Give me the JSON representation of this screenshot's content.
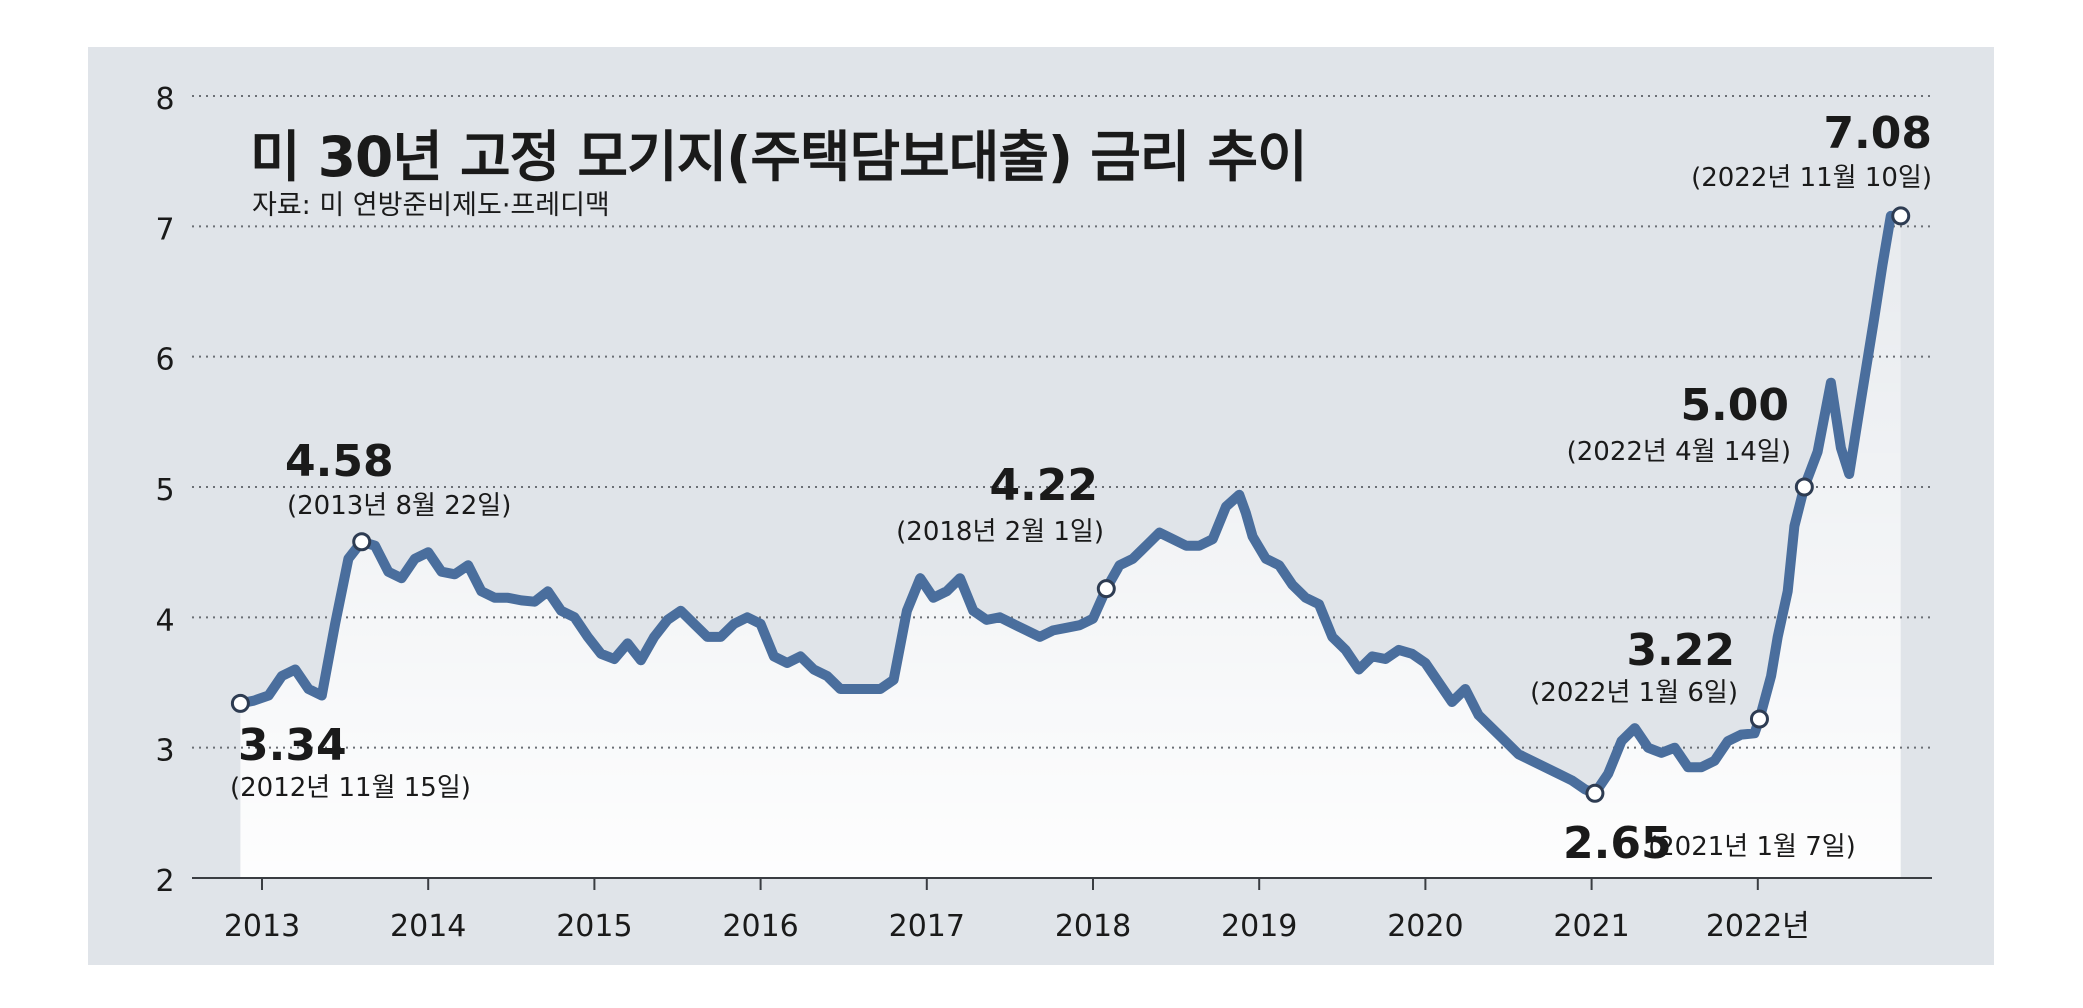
{
  "chart_data": {
    "type": "line",
    "title": "미 30년 고정 모기지(주택담보대출) 금리 추이",
    "subtitle": "자료: 미 연방준비제도·프레디맥",
    "ylim": [
      2,
      8
    ],
    "yticks": [
      "2",
      "3",
      "4",
      "5",
      "6",
      "7",
      "8"
    ],
    "xlim": [
      2012.85,
      2022.93
    ],
    "xticks": [
      {
        "x": 2013,
        "label": "2013"
      },
      {
        "x": 2014,
        "label": "2014"
      },
      {
        "x": 2015,
        "label": "2015"
      },
      {
        "x": 2016,
        "label": "2016"
      },
      {
        "x": 2017,
        "label": "2017"
      },
      {
        "x": 2018,
        "label": "2018"
      },
      {
        "x": 2019,
        "label": "2019"
      },
      {
        "x": 2020,
        "label": "2020"
      },
      {
        "x": 2021,
        "label": "2021"
      },
      {
        "x": 2022,
        "label": "2022년"
      }
    ],
    "grid": "horizontal-dotted",
    "colors": {
      "line": "#4a6e9d",
      "panel": "#e0e4e9",
      "text": "#1a1a1a"
    },
    "series": [
      {
        "points": [
          [
            2012.87,
            3.34
          ],
          [
            2012.95,
            3.36
          ],
          [
            2013.04,
            3.4
          ],
          [
            2013.12,
            3.55
          ],
          [
            2013.2,
            3.6
          ],
          [
            2013.28,
            3.45
          ],
          [
            2013.36,
            3.4
          ],
          [
            2013.44,
            3.95
          ],
          [
            2013.52,
            4.45
          ],
          [
            2013.6,
            4.58
          ],
          [
            2013.68,
            4.55
          ],
          [
            2013.76,
            4.35
          ],
          [
            2013.84,
            4.3
          ],
          [
            2013.92,
            4.45
          ],
          [
            2014.0,
            4.5
          ],
          [
            2014.08,
            4.35
          ],
          [
            2014.16,
            4.33
          ],
          [
            2014.24,
            4.4
          ],
          [
            2014.32,
            4.2
          ],
          [
            2014.4,
            4.15
          ],
          [
            2014.48,
            4.15
          ],
          [
            2014.56,
            4.13
          ],
          [
            2014.64,
            4.12
          ],
          [
            2014.72,
            4.2
          ],
          [
            2014.8,
            4.05
          ],
          [
            2014.88,
            4.0
          ],
          [
            2014.96,
            3.85
          ],
          [
            2015.04,
            3.72
          ],
          [
            2015.12,
            3.68
          ],
          [
            2015.2,
            3.8
          ],
          [
            2015.28,
            3.67
          ],
          [
            2015.36,
            3.85
          ],
          [
            2015.44,
            3.98
          ],
          [
            2015.52,
            4.05
          ],
          [
            2015.6,
            3.95
          ],
          [
            2015.68,
            3.85
          ],
          [
            2015.76,
            3.85
          ],
          [
            2015.84,
            3.95
          ],
          [
            2015.92,
            4.0
          ],
          [
            2016.0,
            3.95
          ],
          [
            2016.08,
            3.7
          ],
          [
            2016.16,
            3.65
          ],
          [
            2016.24,
            3.7
          ],
          [
            2016.32,
            3.6
          ],
          [
            2016.4,
            3.55
          ],
          [
            2016.48,
            3.45
          ],
          [
            2016.56,
            3.45
          ],
          [
            2016.64,
            3.45
          ],
          [
            2016.72,
            3.45
          ],
          [
            2016.8,
            3.52
          ],
          [
            2016.88,
            4.05
          ],
          [
            2016.96,
            4.3
          ],
          [
            2017.04,
            4.15
          ],
          [
            2017.12,
            4.2
          ],
          [
            2017.2,
            4.3
          ],
          [
            2017.28,
            4.05
          ],
          [
            2017.36,
            3.98
          ],
          [
            2017.44,
            4.0
          ],
          [
            2017.52,
            3.95
          ],
          [
            2017.6,
            3.9
          ],
          [
            2017.68,
            3.85
          ],
          [
            2017.76,
            3.9
          ],
          [
            2017.84,
            3.92
          ],
          [
            2017.92,
            3.94
          ],
          [
            2018.0,
            3.99
          ],
          [
            2018.08,
            4.22
          ],
          [
            2018.16,
            4.4
          ],
          [
            2018.24,
            4.45
          ],
          [
            2018.32,
            4.55
          ],
          [
            2018.4,
            4.65
          ],
          [
            2018.48,
            4.6
          ],
          [
            2018.56,
            4.55
          ],
          [
            2018.64,
            4.55
          ],
          [
            2018.72,
            4.6
          ],
          [
            2018.8,
            4.85
          ],
          [
            2018.88,
            4.94
          ],
          [
            2018.92,
            4.8
          ],
          [
            2018.96,
            4.62
          ],
          [
            2019.04,
            4.45
          ],
          [
            2019.12,
            4.4
          ],
          [
            2019.2,
            4.25
          ],
          [
            2019.28,
            4.15
          ],
          [
            2019.36,
            4.1
          ],
          [
            2019.44,
            3.85
          ],
          [
            2019.52,
            3.75
          ],
          [
            2019.6,
            3.6
          ],
          [
            2019.68,
            3.7
          ],
          [
            2019.76,
            3.68
          ],
          [
            2019.84,
            3.75
          ],
          [
            2019.92,
            3.72
          ],
          [
            2020.0,
            3.65
          ],
          [
            2020.08,
            3.5
          ],
          [
            2020.16,
            3.35
          ],
          [
            2020.24,
            3.45
          ],
          [
            2020.32,
            3.25
          ],
          [
            2020.4,
            3.15
          ],
          [
            2020.48,
            3.05
          ],
          [
            2020.56,
            2.95
          ],
          [
            2020.64,
            2.9
          ],
          [
            2020.72,
            2.85
          ],
          [
            2020.8,
            2.8
          ],
          [
            2020.88,
            2.75
          ],
          [
            2020.96,
            2.68
          ],
          [
            2021.02,
            2.65
          ],
          [
            2021.1,
            2.8
          ],
          [
            2021.18,
            3.05
          ],
          [
            2021.26,
            3.15
          ],
          [
            2021.34,
            3.0
          ],
          [
            2021.42,
            2.96
          ],
          [
            2021.5,
            3.0
          ],
          [
            2021.58,
            2.85
          ],
          [
            2021.66,
            2.85
          ],
          [
            2021.74,
            2.9
          ],
          [
            2021.82,
            3.05
          ],
          [
            2021.9,
            3.1
          ],
          [
            2021.98,
            3.11
          ],
          [
            2022.01,
            3.22
          ],
          [
            2022.08,
            3.55
          ],
          [
            2022.12,
            3.85
          ],
          [
            2022.18,
            4.2
          ],
          [
            2022.22,
            4.7
          ],
          [
            2022.28,
            5.0
          ],
          [
            2022.36,
            5.27
          ],
          [
            2022.44,
            5.8
          ],
          [
            2022.5,
            5.3
          ],
          [
            2022.55,
            5.1
          ],
          [
            2022.62,
            5.66
          ],
          [
            2022.7,
            6.29
          ],
          [
            2022.75,
            6.7
          ],
          [
            2022.8,
            7.08
          ],
          [
            2022.86,
            7.08
          ]
        ]
      }
    ],
    "annotations": [
      {
        "x": 2012.87,
        "y": 3.34,
        "value": "3.34",
        "date": "(2012년 11월 15일)"
      },
      {
        "x": 2013.6,
        "y": 4.58,
        "value": "4.58",
        "date": "(2013년 8월 22일)"
      },
      {
        "x": 2018.08,
        "y": 4.22,
        "value": "4.22",
        "date": "(2018년 2월 1일)"
      },
      {
        "x": 2021.02,
        "y": 2.65,
        "value": "2.65",
        "date": "(2021년 1월 7일)"
      },
      {
        "x": 2022.01,
        "y": 3.22,
        "value": "3.22",
        "date": "(2022년 1월 6일)"
      },
      {
        "x": 2022.28,
        "y": 5.0,
        "value": "5.00",
        "date": "(2022년 4월 14일)"
      },
      {
        "x": 2022.86,
        "y": 7.08,
        "value": "7.08",
        "date": "(2022년 11월 10일)"
      }
    ]
  }
}
